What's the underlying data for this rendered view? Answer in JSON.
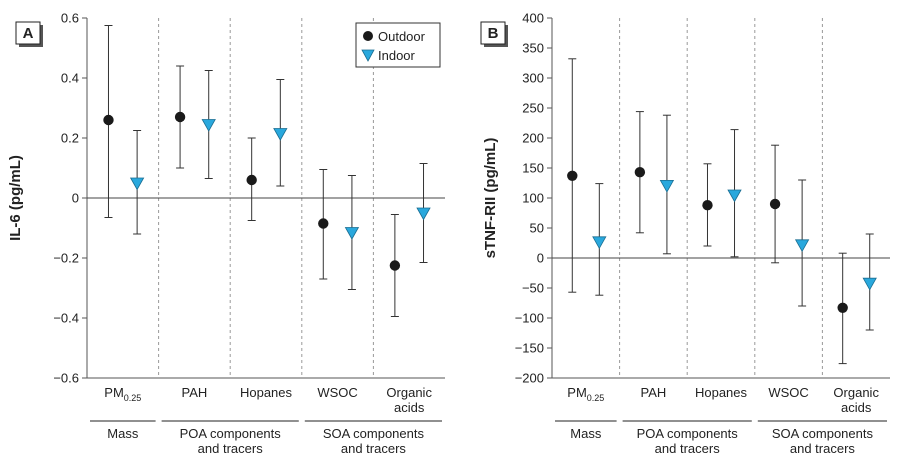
{
  "colors": {
    "outdoor": "#1a1a1a",
    "indoor": "#29a8dd",
    "grid_vline": "#999999",
    "axis": "#555555"
  },
  "chart_data": [
    {
      "panel": "A",
      "type": "scatter",
      "ylabel": "IL-6 (pg/mL)",
      "ylim": [
        -0.6,
        0.6
      ],
      "yticks": [
        "0.6",
        "0.4",
        "0.2",
        "0",
        "−0.2",
        "−0.4",
        "−0.6"
      ],
      "ytick_values": [
        0.6,
        0.4,
        0.2,
        0,
        -0.2,
        -0.4,
        -0.6
      ],
      "categories": [
        {
          "text": "PM",
          "sub": "0.25"
        },
        {
          "text": "PAH"
        },
        {
          "text": "Hopanes"
        },
        {
          "text": "WSOC"
        },
        {
          "text": "Organic",
          "line2": "acids"
        }
      ],
      "groups": [
        {
          "line1": "Mass",
          "line2": ""
        },
        {
          "line1": "POA components",
          "line2": "and tracers"
        },
        {
          "line1": "SOA components",
          "line2": "and tracers"
        }
      ],
      "legend": [
        "Outdoor",
        "Indoor"
      ],
      "legend_position": "top-right",
      "series": [
        {
          "name": "Outdoor",
          "values": [
            0.26,
            0.27,
            0.06,
            -0.085,
            -0.225
          ],
          "lower": [
            -0.065,
            0.1,
            -0.075,
            -0.27,
            -0.395
          ],
          "upper": [
            0.575,
            0.44,
            0.2,
            0.095,
            -0.055
          ]
        },
        {
          "name": "Indoor",
          "values": [
            0.05,
            0.245,
            0.215,
            -0.115,
            -0.05
          ],
          "lower": [
            -0.12,
            0.065,
            0.04,
            -0.305,
            -0.215
          ],
          "upper": [
            0.225,
            0.425,
            0.395,
            0.075,
            0.115
          ]
        }
      ]
    },
    {
      "panel": "B",
      "type": "scatter",
      "ylabel": "sTNF-RII (pg/mL)",
      "ylim": [
        -200,
        400
      ],
      "yticks": [
        "400",
        "350",
        "300",
        "250",
        "200",
        "150",
        "100",
        "50",
        "0",
        "−50",
        "−100",
        "−150",
        "−200"
      ],
      "ytick_values": [
        400,
        350,
        300,
        250,
        200,
        150,
        100,
        50,
        0,
        -50,
        -100,
        -150,
        -200
      ],
      "categories": [
        {
          "text": "PM",
          "sub": "0.25"
        },
        {
          "text": "PAH"
        },
        {
          "text": "Hopanes"
        },
        {
          "text": "WSOC"
        },
        {
          "text": "Organic",
          "line2": "acids"
        }
      ],
      "groups": [
        {
          "line1": "Mass",
          "line2": ""
        },
        {
          "line1": "POA components",
          "line2": "and tracers"
        },
        {
          "line1": "SOA components",
          "line2": "and tracers"
        }
      ],
      "series": [
        {
          "name": "Outdoor",
          "values": [
            137,
            143,
            88,
            90,
            -83
          ],
          "lower": [
            -57,
            42,
            20,
            -8,
            -176
          ],
          "upper": [
            332,
            244,
            157,
            188,
            8
          ]
        },
        {
          "name": "Indoor",
          "values": [
            27,
            121,
            105,
            22,
            -42
          ],
          "lower": [
            -62,
            7,
            2,
            -80,
            -120
          ],
          "upper": [
            124,
            238,
            214,
            130,
            40
          ]
        }
      ]
    }
  ]
}
